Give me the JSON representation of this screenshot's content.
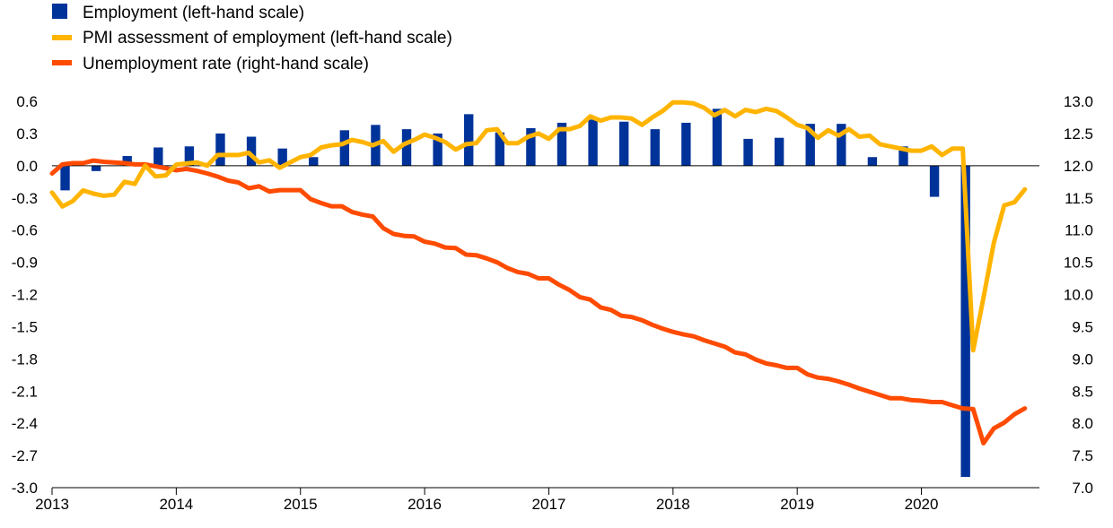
{
  "chart_data": {
    "type": "bar+line",
    "title": "",
    "legend": {
      "placement": "top-left",
      "entries": [
        {
          "label": "Employment (left-hand scale)",
          "marker": "square",
          "color": "#003399"
        },
        {
          "label": "PMI assessment of employment (left-hand scale)",
          "marker": "line",
          "color": "#ffb400"
        },
        {
          "label": "Unemployment rate (right-hand scale)",
          "marker": "line",
          "color": "#ff4b00"
        }
      ]
    },
    "x_axis": {
      "labels": [
        "2013",
        "2014",
        "2015",
        "2016",
        "2017",
        "2018",
        "2019",
        "2020"
      ],
      "range": [
        2013.0,
        2020.95
      ]
    },
    "y_left": {
      "range": [
        -3.0,
        0.6
      ],
      "ticks": [
        "0.6",
        "0.3",
        "0.0",
        "-0.3",
        "-0.6",
        "-0.9",
        "-1.2",
        "-1.5",
        "-1.8",
        "-2.1",
        "-2.4",
        "-2.7",
        "-3.0"
      ]
    },
    "y_right": {
      "range": [
        7.0,
        13.0
      ],
      "ticks": [
        "13.0",
        "12.5",
        "12.0",
        "11.5",
        "11.0",
        "10.5",
        "10.0",
        "9.5",
        "9.0",
        "8.5",
        "8.0",
        "7.5",
        "7.0"
      ]
    },
    "series": [
      {
        "name": "Employment (left-hand scale)",
        "type": "bar",
        "axis": "left",
        "color": "#003399",
        "x": [
          "2013Q1",
          "2013Q2",
          "2013Q3",
          "2013Q4",
          "2014Q1",
          "2014Q2",
          "2014Q3",
          "2014Q4",
          "2015Q1",
          "2015Q2",
          "2015Q3",
          "2015Q4",
          "2016Q1",
          "2016Q2",
          "2016Q3",
          "2016Q4",
          "2017Q1",
          "2017Q2",
          "2017Q3",
          "2017Q4",
          "2018Q1",
          "2018Q2",
          "2018Q3",
          "2018Q4",
          "2019Q1",
          "2019Q2",
          "2019Q3",
          "2019Q4",
          "2020Q1",
          "2020Q2"
        ],
        "values": [
          -0.23,
          -0.05,
          0.09,
          0.17,
          0.18,
          0.3,
          0.27,
          0.16,
          0.08,
          0.33,
          0.38,
          0.34,
          0.3,
          0.48,
          0.31,
          0.35,
          0.4,
          0.43,
          0.41,
          0.34,
          0.4,
          0.53,
          0.25,
          0.26,
          0.39,
          0.39,
          0.08,
          0.18,
          -0.29,
          -2.9
        ]
      },
      {
        "name": "PMI assessment of employment (left-hand scale)",
        "type": "line",
        "axis": "left",
        "color": "#ffb400",
        "x_start": 2013.0,
        "step": 0.08333,
        "values": [
          -0.25,
          -0.38,
          -0.33,
          -0.23,
          -0.26,
          -0.28,
          -0.27,
          -0.15,
          -0.17,
          0.0,
          -0.1,
          -0.09,
          0.01,
          0.02,
          0.03,
          0.0,
          0.1,
          0.1,
          0.1,
          0.12,
          0.03,
          0.05,
          -0.02,
          0.03,
          0.08,
          0.1,
          0.17,
          0.19,
          0.2,
          0.24,
          0.22,
          0.19,
          0.23,
          0.13,
          0.2,
          0.24,
          0.29,
          0.26,
          0.22,
          0.15,
          0.2,
          0.21,
          0.33,
          0.34,
          0.21,
          0.21,
          0.27,
          0.3,
          0.25,
          0.34,
          0.34,
          0.37,
          0.46,
          0.42,
          0.45,
          0.45,
          0.44,
          0.38,
          0.45,
          0.51,
          0.59,
          0.59,
          0.58,
          0.54,
          0.47,
          0.52,
          0.46,
          0.52,
          0.5,
          0.53,
          0.51,
          0.45,
          0.38,
          0.35,
          0.26,
          0.33,
          0.28,
          0.34,
          0.27,
          0.28,
          0.2,
          0.18,
          0.16,
          0.14,
          0.14,
          0.18,
          0.1,
          0.16,
          0.16,
          -1.72,
          -1.23,
          -0.72,
          -0.37,
          -0.34,
          -0.22
        ]
      },
      {
        "name": "Unemployment rate (right-hand scale)",
        "type": "line",
        "axis": "right",
        "color": "#ff4b00",
        "x_start": 2013.0,
        "step": 0.08333,
        "values": [
          11.88,
          12.02,
          12.04,
          12.04,
          12.08,
          12.06,
          12.05,
          12.04,
          12.02,
          12.02,
          11.99,
          11.96,
          11.93,
          11.95,
          11.92,
          11.88,
          11.83,
          11.77,
          11.74,
          11.65,
          11.68,
          11.6,
          11.62,
          11.62,
          11.62,
          11.48,
          11.42,
          11.37,
          11.37,
          11.28,
          11.24,
          11.21,
          11.03,
          10.94,
          10.91,
          10.9,
          10.82,
          10.79,
          10.73,
          10.72,
          10.62,
          10.61,
          10.56,
          10.5,
          10.41,
          10.35,
          10.32,
          10.25,
          10.25,
          10.15,
          10.07,
          9.96,
          9.92,
          9.8,
          9.76,
          9.67,
          9.65,
          9.6,
          9.53,
          9.47,
          9.42,
          9.38,
          9.35,
          9.29,
          9.24,
          9.19,
          9.1,
          9.07,
          8.99,
          8.93,
          8.9,
          8.86,
          8.86,
          8.76,
          8.71,
          8.69,
          8.65,
          8.6,
          8.54,
          8.49,
          8.44,
          8.39,
          8.39,
          8.36,
          8.35,
          8.33,
          8.33,
          8.28,
          8.23,
          8.22,
          7.69,
          7.92,
          8.01,
          8.14,
          8.23
        ]
      }
    ]
  }
}
